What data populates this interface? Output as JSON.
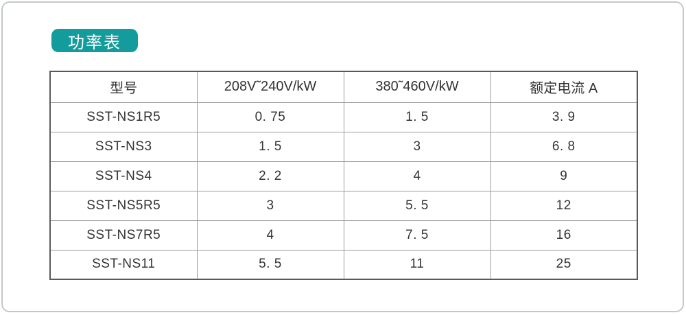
{
  "badge": {
    "label": "功率表"
  },
  "table": {
    "headers": [
      "型号",
      "208V˜240V/kW",
      "380˜460V/kW",
      "额定电流 A"
    ],
    "rows": [
      [
        "SST-NS1R5",
        "0. 75",
        "1. 5",
        "3. 9"
      ],
      [
        "SST-NS3",
        "1. 5",
        "3",
        "6. 8"
      ],
      [
        "SST-NS4",
        "2. 2",
        "4",
        "9"
      ],
      [
        "SST-NS5R5",
        "3",
        "5. 5",
        "12"
      ],
      [
        "SST-NS7R5",
        "4",
        "7. 5",
        "16"
      ],
      [
        "SST-NS11",
        "5. 5",
        "11",
        "25"
      ]
    ]
  },
  "colors": {
    "badge_background": "#149c9c",
    "badge_text": "#ffffff",
    "page_border": "#c3c8ca",
    "table_outer_border": "#595959",
    "table_inner_border": "#9b9b9b",
    "text": "#333333"
  }
}
